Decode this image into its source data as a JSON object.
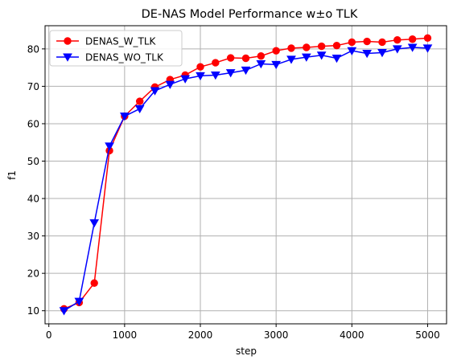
{
  "chart_data": {
    "type": "line",
    "title": "DE-NAS Model Performance w±o TLK",
    "xlabel": "step",
    "ylabel": "f1",
    "xlim": [
      -50,
      5250
    ],
    "ylim": [
      6.5,
      86.2
    ],
    "xticks": [
      0,
      1000,
      2000,
      3000,
      4000,
      5000
    ],
    "yticks": [
      10,
      20,
      30,
      40,
      50,
      60,
      70,
      80
    ],
    "grid": true,
    "legend_position": "top-left",
    "x": [
      200,
      400,
      600,
      800,
      1000,
      1200,
      1400,
      1600,
      1800,
      2000,
      2200,
      2400,
      2600,
      2800,
      3000,
      3200,
      3400,
      3600,
      3800,
      4000,
      4200,
      4400,
      4600,
      4800,
      5000
    ],
    "series": [
      {
        "name": "DENAS_W_TLK",
        "color": "#ff0000",
        "marker": "circle",
        "values": [
          10.5,
          12.2,
          17.4,
          52.8,
          62.0,
          66.0,
          69.8,
          71.8,
          73.0,
          75.2,
          76.3,
          77.6,
          77.5,
          78.1,
          79.5,
          80.2,
          80.4,
          80.7,
          80.9,
          81.8,
          82.0,
          81.8,
          82.4,
          82.6,
          82.9
        ]
      },
      {
        "name": "DENAS_WO_TLK",
        "color": "#0000ff",
        "marker": "triangle-down",
        "values": [
          10.0,
          12.5,
          33.5,
          54.0,
          62.0,
          64.0,
          68.8,
          70.5,
          72.0,
          72.8,
          73.0,
          73.6,
          74.3,
          76.0,
          75.8,
          77.2,
          77.8,
          78.3,
          77.5,
          79.5,
          78.8,
          79.0,
          80.0,
          80.4,
          80.2
        ]
      }
    ]
  }
}
